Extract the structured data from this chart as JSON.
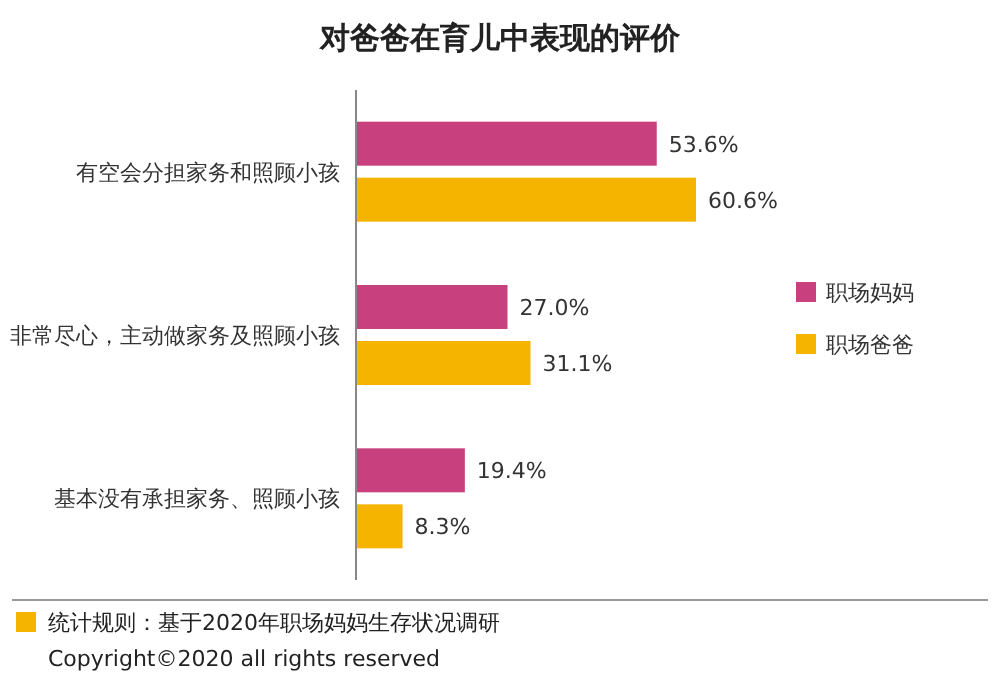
{
  "chart_data": {
    "type": "bar",
    "orientation": "horizontal",
    "title": "对爸爸在育儿中表现的评价",
    "categories": [
      "有空会分担家务和照顾小孩",
      "非常尽心，主动做家务及照顾小孩",
      "基本没有承担家务、照顾小孩"
    ],
    "series": [
      {
        "name": "职场妈妈",
        "color": "#c8407e",
        "values": [
          53.6,
          27.0,
          19.4
        ],
        "value_labels": [
          "53.6%",
          "27.0%",
          "19.4%"
        ]
      },
      {
        "name": "职场爸爸",
        "color": "#f5b400",
        "values": [
          60.6,
          31.1,
          8.3
        ],
        "value_labels": [
          "60.6%",
          "31.1%",
          "8.3%"
        ]
      }
    ],
    "legend": "right",
    "annotations": [
      "统计规则：基于2020年职场妈妈生存状况调研",
      "Copyright©2020 all rights reserved"
    ]
  }
}
